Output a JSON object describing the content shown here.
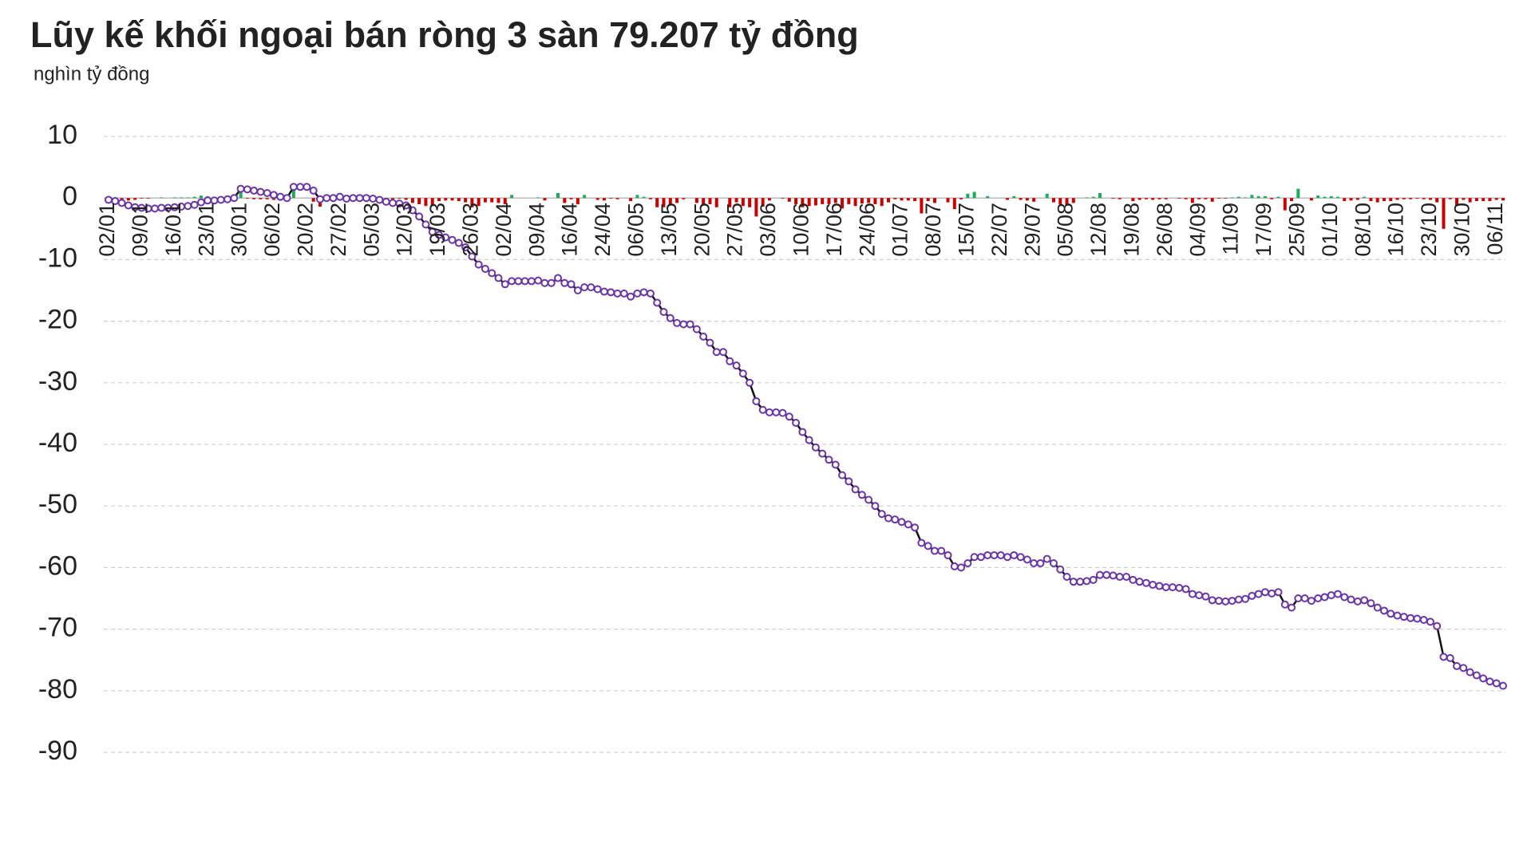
{
  "chart_data": {
    "type": "line",
    "title": "Lũy kế khối ngoại bán ròng 3 sàn 79.207 tỷ đồng",
    "subtitle": "nghìn tỷ đồng",
    "categories": [
      "02/01",
      null,
      null,
      null,
      null,
      "09/01",
      null,
      null,
      null,
      null,
      "16/01",
      null,
      null,
      null,
      null,
      "23/01",
      null,
      null,
      null,
      null,
      "30/01",
      null,
      null,
      null,
      null,
      "06/02",
      null,
      null,
      null,
      null,
      "20/02",
      null,
      null,
      null,
      null,
      "27/02",
      null,
      null,
      null,
      null,
      "05/03",
      null,
      null,
      null,
      null,
      "12/03",
      null,
      null,
      null,
      null,
      "19/03",
      null,
      null,
      null,
      null,
      "26/03",
      null,
      null,
      null,
      null,
      "02/04",
      null,
      null,
      null,
      null,
      "09/04",
      null,
      null,
      null,
      null,
      "16/04",
      null,
      null,
      null,
      null,
      "24/04",
      null,
      null,
      null,
      null,
      "06/05",
      null,
      null,
      null,
      null,
      "13/05",
      null,
      null,
      null,
      null,
      "20/05",
      null,
      null,
      null,
      null,
      "27/05",
      null,
      null,
      null,
      null,
      "03/06",
      null,
      null,
      null,
      null,
      "10/06",
      null,
      null,
      null,
      null,
      "17/06",
      null,
      null,
      null,
      null,
      "24/06",
      null,
      null,
      null,
      null,
      "01/07",
      null,
      null,
      null,
      null,
      "08/07",
      null,
      null,
      null,
      null,
      "15/07",
      null,
      null,
      null,
      null,
      "22/07",
      null,
      null,
      null,
      null,
      "29/07",
      null,
      null,
      null,
      null,
      "05/08",
      null,
      null,
      null,
      null,
      "12/08",
      null,
      null,
      null,
      null,
      "19/08",
      null,
      null,
      null,
      null,
      "26/08",
      null,
      null,
      null,
      null,
      "04/09",
      null,
      null,
      null,
      null,
      "11/09",
      null,
      null,
      null,
      null,
      "17/09",
      null,
      null,
      null,
      null,
      "25/09",
      null,
      null,
      null,
      null,
      "01/10",
      null,
      null,
      null,
      null,
      "08/10",
      null,
      null,
      null,
      null,
      "16/10",
      null,
      null,
      null,
      null,
      "23/10",
      null,
      null,
      null,
      null,
      "30/10",
      null,
      null,
      null,
      null,
      "06/11",
      null
    ],
    "series": [
      {
        "type": "line",
        "color": "#6b35a8",
        "line_color": "#111111",
        "values": [
          -0.3,
          -0.5,
          -0.8,
          -1.2,
          -1.5,
          -1.6,
          -1.7,
          -1.7,
          -1.6,
          -1.6,
          -1.5,
          -1.4,
          -1.3,
          -1.1,
          -0.7,
          -0.4,
          -0.4,
          -0.3,
          -0.2,
          0,
          1.5,
          1.4,
          1.2,
          1,
          0.8,
          0.5,
          0.2,
          0,
          1.8,
          1.8,
          1.8,
          1.2,
          -0.2,
          0,
          0,
          0.2,
          -0.1,
          0,
          0,
          0,
          -0.1,
          -0.3,
          -0.6,
          -0.8,
          -0.9,
          -1.2,
          -2,
          -3,
          -4.3,
          -5.5,
          -6,
          -6.4,
          -6.8,
          -7.3,
          -8,
          -9.5,
          -10.8,
          -11.5,
          -12.2,
          -13,
          -14,
          -13.5,
          -13.5,
          -13.5,
          -13.5,
          -13.4,
          -13.8,
          -13.8,
          -13,
          -13.8,
          -14,
          -15,
          -14.5,
          -14.5,
          -14.8,
          -15.2,
          -15.3,
          -15.5,
          -15.5,
          -16,
          -15.5,
          -15.3,
          -15.5,
          -17,
          -18.5,
          -19.5,
          -20.3,
          -20.5,
          -20.5,
          -21.3,
          -22.5,
          -23.5,
          -25,
          -25,
          -26.5,
          -27.2,
          -28.5,
          -30,
          -33,
          -34.4,
          -34.8,
          -34.8,
          -34.9,
          -35.5,
          -36.5,
          -38,
          -39.3,
          -40.5,
          -41.5,
          -42.5,
          -43.3,
          -45,
          -46,
          -47.3,
          -48.2,
          -49,
          -50,
          -51.3,
          -52,
          -52.2,
          -52.6,
          -53,
          -53.5,
          -56,
          -56.5,
          -57.3,
          -57.3,
          -58,
          -59.8,
          -60,
          -59.3,
          -58.3,
          -58.3,
          -58,
          -58,
          -58,
          -58.3,
          -58,
          -58.3,
          -58.7,
          -59.3,
          -59.3,
          -58.6,
          -59.3,
          -60.3,
          -61.5,
          -62.3,
          -62.3,
          -62.2,
          -62,
          -61.2,
          -61.2,
          -61.3,
          -61.5,
          -61.5,
          -62,
          -62.3,
          -62.5,
          -62.8,
          -63,
          -63.2,
          -63.2,
          -63.3,
          -63.5,
          -64.3,
          -64.5,
          -64.7,
          -65.3,
          -65.4,
          -65.5,
          -65.4,
          -65.2,
          -65.1,
          -64.6,
          -64.3,
          -64,
          -64.2,
          -64,
          -66,
          -66.5,
          -65,
          -65,
          -65.4,
          -65,
          -64.8,
          -64.5,
          -64.3,
          -64.8,
          -65.2,
          -65.5,
          -65.3,
          -65.8,
          -66.5,
          -67,
          -67.5,
          -67.8,
          -68,
          -68.2,
          -68.3,
          -68.5,
          -68.8,
          -69.5,
          -74.5,
          -74.7,
          -76,
          -76.3,
          -77,
          -77.5,
          -78,
          -78.5,
          -78.8,
          -79.2
        ]
      },
      {
        "type": "bar",
        "positive_color": "#1faa5a",
        "negative_color": "#cc0000",
        "values": [
          -0.3,
          -0.2,
          -0.3,
          -0.4,
          -0.3,
          -0.1,
          -0.1,
          0,
          0.1,
          0,
          0.1,
          0.1,
          0.1,
          0.2,
          0.4,
          0.3,
          0,
          0.1,
          0.1,
          0.2,
          1.5,
          -0.1,
          -0.2,
          -0.2,
          -0.2,
          -0.3,
          -0.3,
          -0.2,
          1.8,
          0,
          0,
          -0.6,
          -1.4,
          0.2,
          0,
          0.2,
          -0.3,
          0.1,
          0,
          0,
          -0.1,
          -0.2,
          -0.3,
          -0.2,
          -0.1,
          -0.3,
          -0.8,
          -1,
          -1.3,
          -1.2,
          -0.5,
          -0.4,
          -0.4,
          -0.5,
          -0.7,
          -1.5,
          -1.3,
          -0.7,
          -0.7,
          -0.8,
          -1,
          0.5,
          0,
          0,
          0,
          0.1,
          -0.4,
          0,
          0.8,
          -0.8,
          -0.2,
          -1,
          0.5,
          0,
          -0.3,
          -0.4,
          -0.1,
          -0.2,
          0,
          -0.5,
          0.5,
          0.2,
          -0.2,
          -1.5,
          -1.5,
          -1,
          -0.8,
          -0.2,
          0,
          -0.8,
          -1.2,
          -1,
          -1.5,
          0,
          -1.5,
          -0.7,
          -1.3,
          -1.5,
          -3,
          -1.4,
          -0.4,
          0,
          -0.1,
          -0.6,
          -1,
          -1.5,
          -1.3,
          -1.2,
          -1,
          -1,
          -0.8,
          -1.7,
          -1,
          -1.3,
          -0.9,
          -0.8,
          -1,
          -1.3,
          -0.7,
          -0.2,
          -0.4,
          -0.4,
          -0.5,
          -2.5,
          -0.5,
          -0.8,
          0,
          -0.7,
          -1.8,
          -0.2,
          0.7,
          1,
          0,
          0.3,
          0,
          0,
          -0.3,
          0.3,
          -0.3,
          -0.4,
          -0.6,
          0,
          0.7,
          -0.7,
          -1,
          -1.2,
          -0.8,
          0,
          0.1,
          0.2,
          0.8,
          0,
          -0.1,
          -0.2,
          0,
          -0.5,
          -0.3,
          -0.2,
          -0.3,
          -0.2,
          -0.2,
          0,
          -0.1,
          -0.2,
          -0.8,
          -0.2,
          -0.2,
          -0.6,
          -0.1,
          -0.1,
          0.1,
          0.2,
          0.1,
          0.5,
          0.3,
          0.3,
          -0.2,
          0.2,
          -2,
          -0.5,
          1.5,
          0,
          -0.4,
          0.4,
          0.2,
          0.3,
          0.2,
          -0.5,
          -0.4,
          -0.3,
          0.2,
          -0.5,
          -0.7,
          -0.5,
          -0.5,
          -0.3,
          -0.2,
          -0.2,
          -0.1,
          -0.2,
          -0.3,
          -0.7,
          -5,
          -0.2,
          -1.3,
          -0.3,
          -0.7,
          -0.5,
          -0.5,
          -0.5,
          -0.3,
          -0.4
        ]
      }
    ],
    "ylim": [
      -90,
      10
    ],
    "yticks": [
      10,
      0,
      -10,
      -20,
      -30,
      -40,
      -50,
      -60,
      -70,
      -80,
      -90
    ],
    "grid": true,
    "title_color": "#c00000"
  }
}
